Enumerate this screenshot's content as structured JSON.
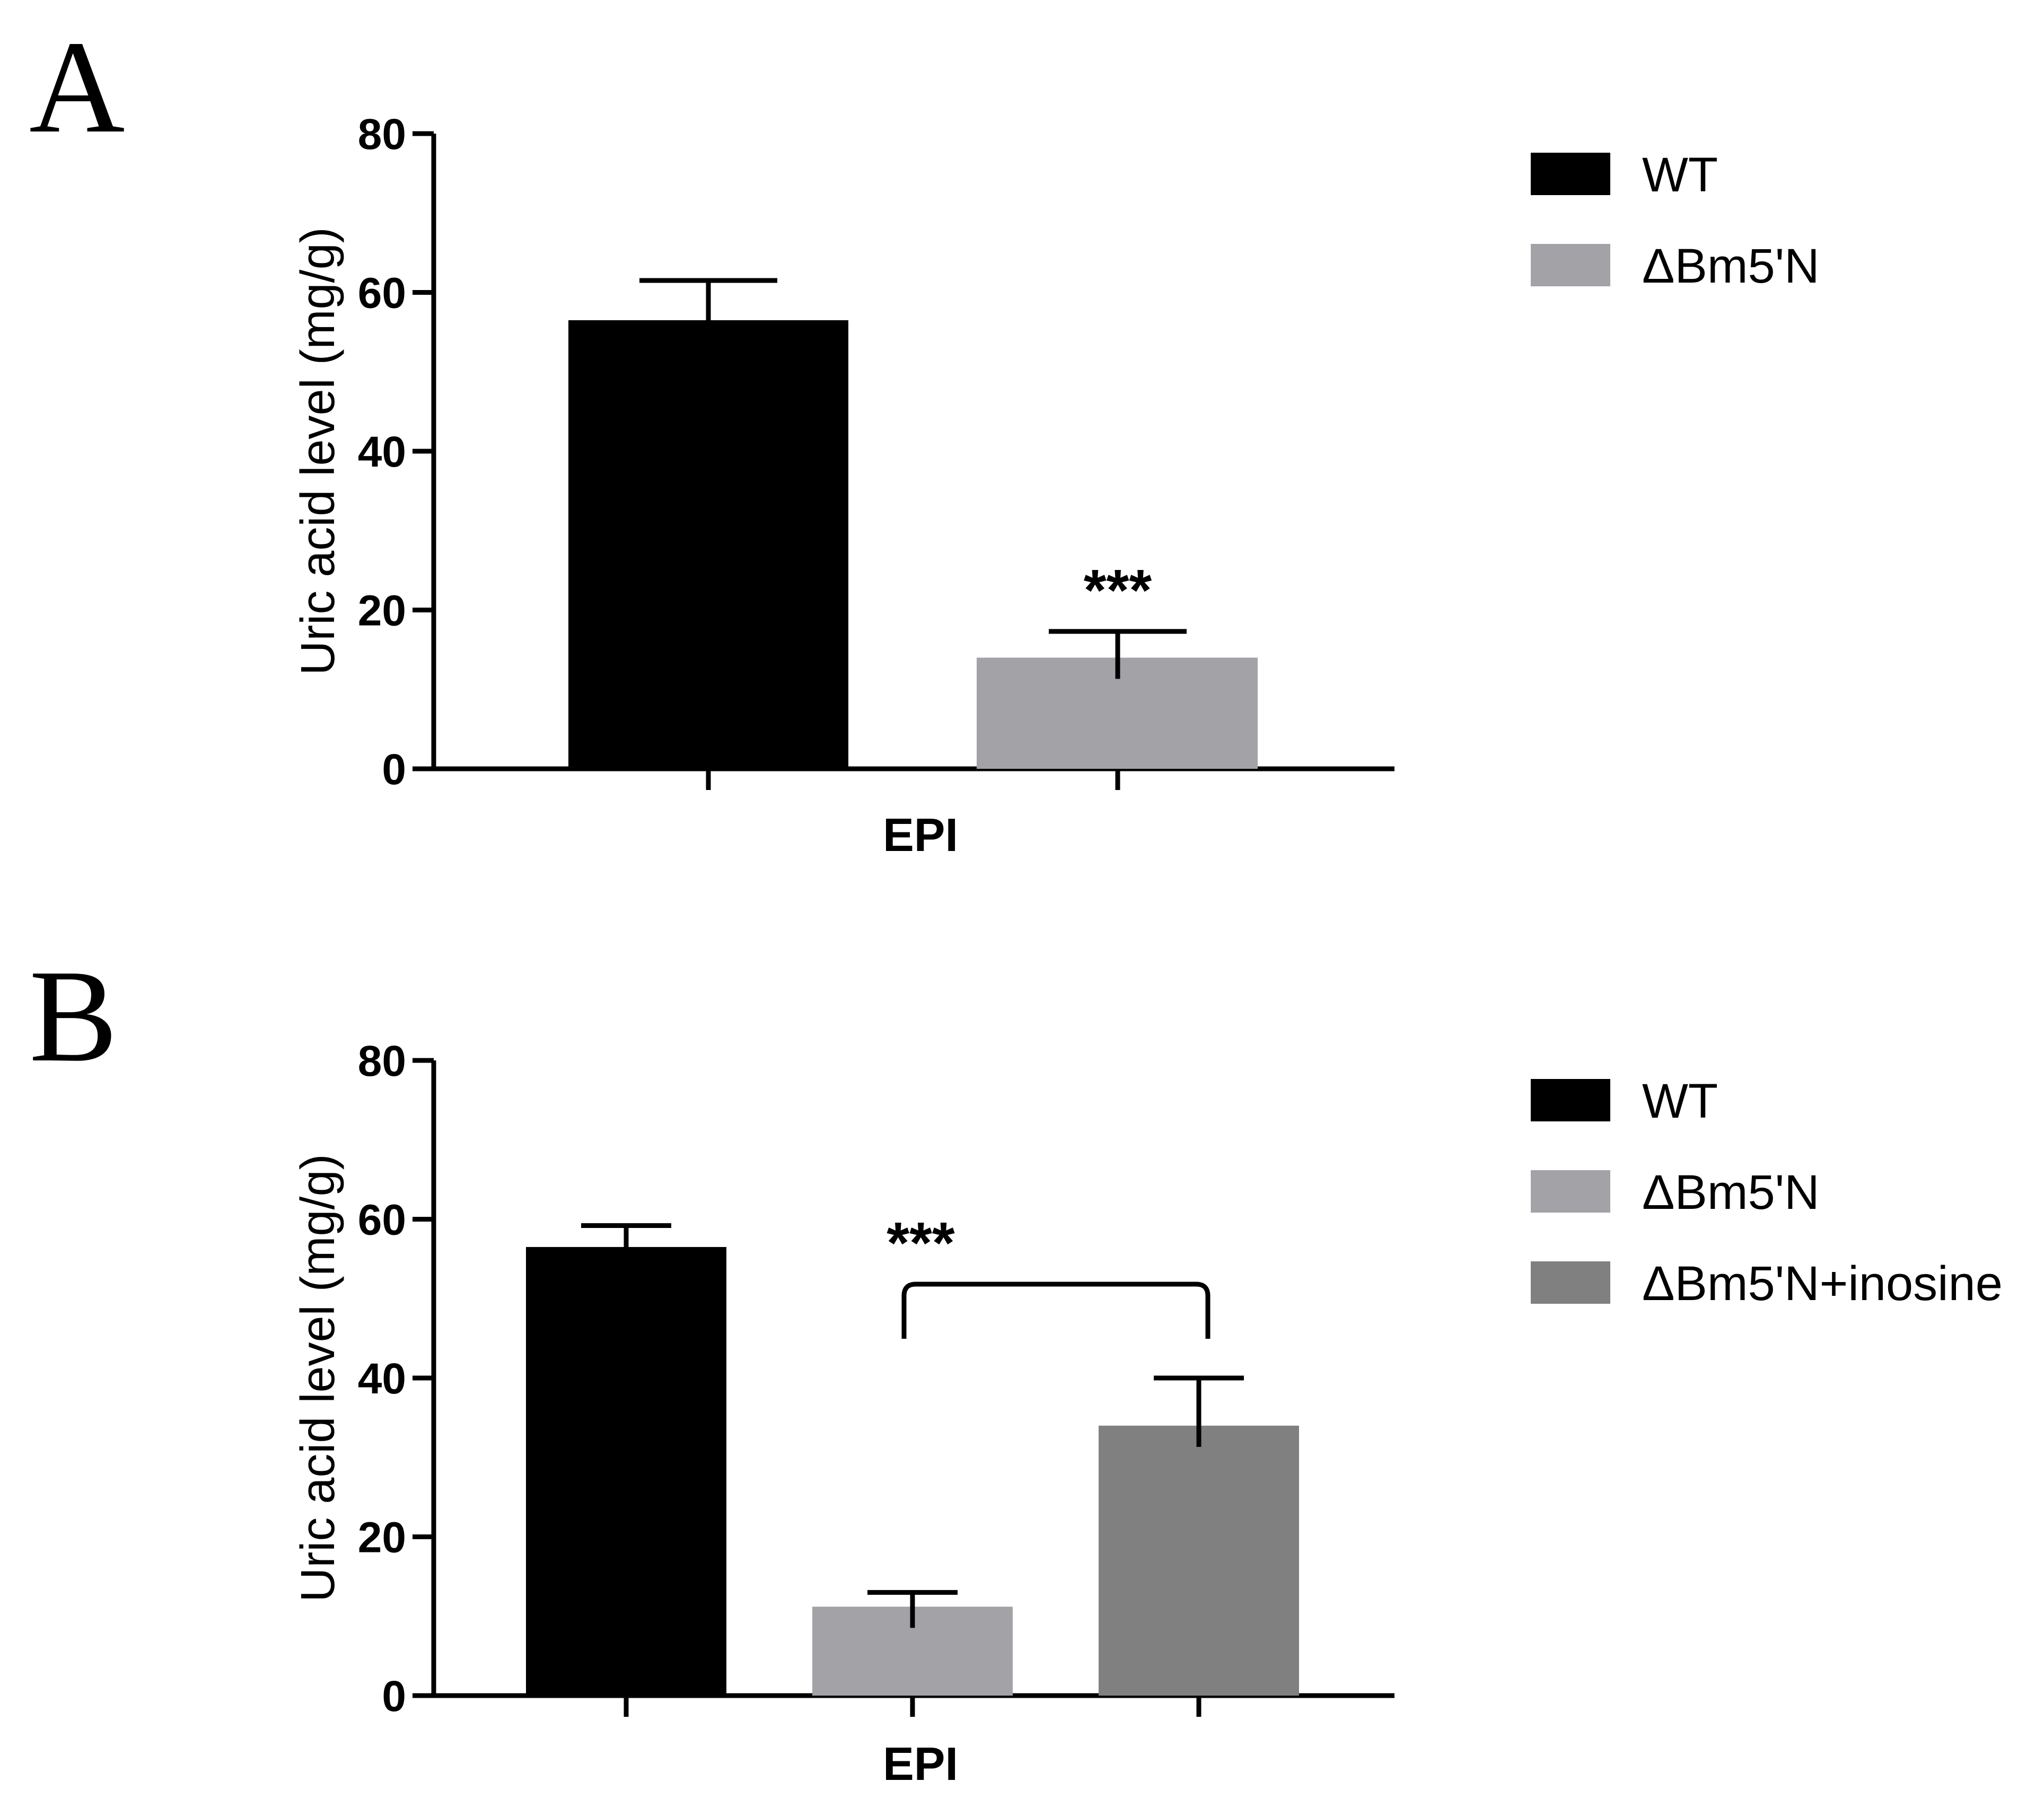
{
  "chart_data": [
    {
      "panel": "A",
      "type": "bar",
      "xlabel": "EPI",
      "ylabel": "Uric acid level (mg/g)",
      "ylim": [
        0,
        80
      ],
      "yticks": [
        "0",
        "20",
        "40",
        "60",
        "80"
      ],
      "grid": false,
      "legend_position": "top-right",
      "series": [
        {
          "name": "WT",
          "value": 56.5,
          "error": 5.0,
          "color": "#000000"
        },
        {
          "name": "ΔBm5'N",
          "value": 14.0,
          "error": 3.3,
          "color": "#a3a2a7"
        }
      ],
      "annotations": [
        {
          "text": "***",
          "target": "ΔBm5'N"
        }
      ]
    },
    {
      "panel": "B",
      "type": "bar",
      "xlabel": "EPI",
      "ylabel": "Uric acid level (mg/g)",
      "ylim": [
        0,
        80
      ],
      "yticks": [
        "0",
        "20",
        "40",
        "60",
        "80"
      ],
      "grid": false,
      "legend_position": "top-right",
      "series": [
        {
          "name": "WT",
          "value": 56.5,
          "error": 2.7,
          "color": "#000000"
        },
        {
          "name": "ΔBm5'N",
          "value": 11.2,
          "error": 1.8,
          "color": "#a3a2a7"
        },
        {
          "name": "ΔBm5'N+inosine",
          "value": 34.0,
          "error": 6.0,
          "color": "#808080"
        }
      ],
      "annotations": [
        {
          "text": "***",
          "between": [
            "ΔBm5'N",
            "ΔBm5'N+inosine"
          ]
        }
      ]
    }
  ]
}
